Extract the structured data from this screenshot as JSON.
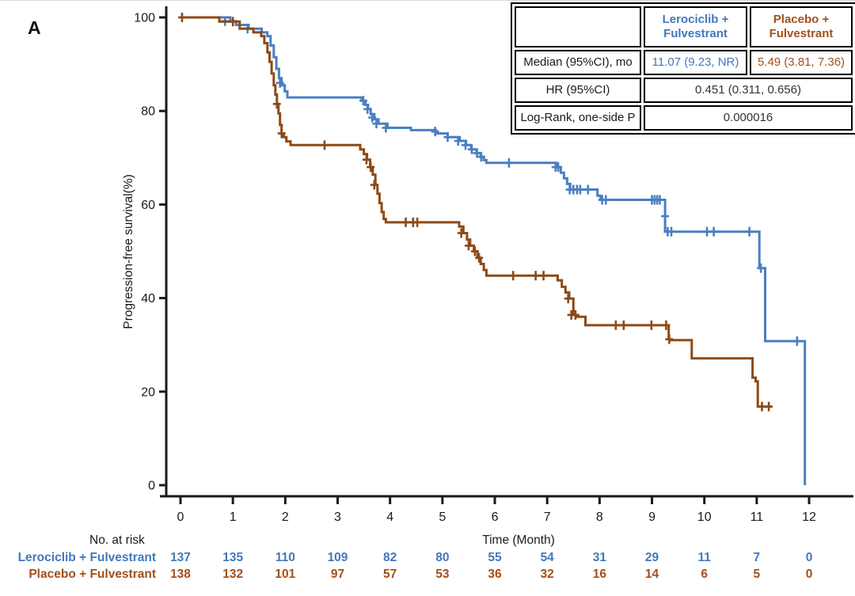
{
  "panel_label": "A",
  "colors": {
    "lerociclib_curve": "#4a7fc1",
    "lerociclib_text": "#4377bd",
    "placebo_curve": "#8d4a16",
    "placebo_text": "#a34f1b",
    "axis": "#1a1a1a",
    "stat_value_text": "#333333"
  },
  "chart_data": {
    "type": "line",
    "subtype": "kaplan-meier-step",
    "title": "",
    "xlabel": "Time (Month)",
    "ylabel": "Progression-free survival(%)",
    "xlim": [
      0,
      12.85
    ],
    "ylim": [
      0,
      100
    ],
    "xticks": [
      0,
      1,
      2,
      3,
      4,
      5,
      6,
      7,
      8,
      9,
      10,
      11,
      12
    ],
    "yticks": [
      0,
      20,
      40,
      60,
      80,
      100
    ],
    "grid": false,
    "legend_position": "none",
    "series": [
      {
        "name": "Lerociclib + Fulvestrant",
        "color": "#4a7fc1",
        "points": [
          [
            0,
            100
          ],
          [
            0.95,
            99.2
          ],
          [
            1.06,
            98.4
          ],
          [
            1.3,
            97.6
          ],
          [
            1.55,
            96.8
          ],
          [
            1.66,
            96
          ],
          [
            1.72,
            94
          ],
          [
            1.78,
            91.5
          ],
          [
            1.83,
            89
          ],
          [
            1.88,
            87
          ],
          [
            1.93,
            85.5
          ],
          [
            1.99,
            84.2
          ],
          [
            2.04,
            82.9
          ],
          [
            3.46,
            82.2
          ],
          [
            3.53,
            81.3
          ],
          [
            3.58,
            80.4
          ],
          [
            3.63,
            79.3
          ],
          [
            3.7,
            78.2
          ],
          [
            3.78,
            77.3
          ],
          [
            3.95,
            76.4
          ],
          [
            4.4,
            75.9
          ],
          [
            4.88,
            75.2
          ],
          [
            5.1,
            74.4
          ],
          [
            5.33,
            73.6
          ],
          [
            5.45,
            72.7
          ],
          [
            5.55,
            71.8
          ],
          [
            5.65,
            71
          ],
          [
            5.73,
            70.2
          ],
          [
            5.79,
            69.5
          ],
          [
            5.84,
            68.9
          ],
          [
            7.18,
            68
          ],
          [
            7.26,
            66.8
          ],
          [
            7.32,
            65.6
          ],
          [
            7.38,
            64.4
          ],
          [
            7.44,
            63.2
          ],
          [
            7.96,
            61.9
          ],
          [
            8.02,
            61
          ],
          [
            9.25,
            54.2
          ],
          [
            11.05,
            46.4
          ],
          [
            11.16,
            30.8
          ],
          [
            11.92,
            0
          ]
        ],
        "censors": [
          [
            0.85,
            99.2
          ],
          [
            1.28,
            97.6
          ],
          [
            1.9,
            86
          ],
          [
            3.49,
            82.2
          ],
          [
            3.57,
            80.4
          ],
          [
            3.66,
            78.6
          ],
          [
            3.74,
            77.3
          ],
          [
            3.92,
            76.4
          ],
          [
            4.86,
            75.6
          ],
          [
            5.1,
            74.4
          ],
          [
            5.3,
            73.6
          ],
          [
            5.44,
            72.7
          ],
          [
            5.56,
            71.8
          ],
          [
            5.66,
            71
          ],
          [
            5.74,
            70.2
          ],
          [
            6.27,
            68.9
          ],
          [
            7.16,
            68
          ],
          [
            7.21,
            68
          ],
          [
            7.43,
            63.2
          ],
          [
            7.5,
            63.2
          ],
          [
            7.57,
            63.2
          ],
          [
            7.63,
            63.2
          ],
          [
            7.78,
            63.2
          ],
          [
            8.05,
            61
          ],
          [
            8.12,
            61
          ],
          [
            9.0,
            61
          ],
          [
            9.05,
            61
          ],
          [
            9.1,
            61
          ],
          [
            9.15,
            61
          ],
          [
            9.25,
            57.5
          ],
          [
            9.3,
            54.2
          ],
          [
            9.37,
            54.2
          ],
          [
            10.05,
            54.2
          ],
          [
            10.18,
            54.2
          ],
          [
            10.86,
            54.2
          ],
          [
            11.08,
            46.4
          ],
          [
            11.77,
            30.8
          ]
        ]
      },
      {
        "name": "Placebo + Fulvestrant",
        "color": "#8d4a16",
        "points": [
          [
            0,
            100
          ],
          [
            0.74,
            99.1
          ],
          [
            1.13,
            97.6
          ],
          [
            1.39,
            96.8
          ],
          [
            1.54,
            96
          ],
          [
            1.6,
            94.5
          ],
          [
            1.66,
            92.5
          ],
          [
            1.7,
            90.5
          ],
          [
            1.74,
            88
          ],
          [
            1.78,
            85.5
          ],
          [
            1.81,
            83.5
          ],
          [
            1.84,
            81.5
          ],
          [
            1.87,
            79.5
          ],
          [
            1.9,
            77
          ],
          [
            1.93,
            75.2
          ],
          [
            1.97,
            74.4
          ],
          [
            2.02,
            73.5
          ],
          [
            2.1,
            72.7
          ],
          [
            3.43,
            71.8
          ],
          [
            3.5,
            70.8
          ],
          [
            3.56,
            69.6
          ],
          [
            3.62,
            68
          ],
          [
            3.67,
            66.4
          ],
          [
            3.72,
            64.2
          ],
          [
            3.76,
            62.3
          ],
          [
            3.8,
            60.3
          ],
          [
            3.84,
            58.4
          ],
          [
            3.88,
            56.9
          ],
          [
            3.92,
            56.2
          ],
          [
            5.32,
            55.3
          ],
          [
            5.4,
            53.9
          ],
          [
            5.47,
            52.5
          ],
          [
            5.53,
            51.2
          ],
          [
            5.6,
            50
          ],
          [
            5.67,
            48.6
          ],
          [
            5.73,
            47.3
          ],
          [
            5.79,
            46
          ],
          [
            5.84,
            44.8
          ],
          [
            7.2,
            43.8
          ],
          [
            7.28,
            42.4
          ],
          [
            7.35,
            41.2
          ],
          [
            7.42,
            39.9
          ],
          [
            7.5,
            36.4
          ],
          [
            7.55,
            36
          ],
          [
            7.73,
            34.2
          ],
          [
            9.32,
            31.2
          ],
          [
            9.35,
            31
          ],
          [
            9.76,
            27.1
          ],
          [
            10.92,
            23
          ],
          [
            10.98,
            22.2
          ],
          [
            11.02,
            16.8
          ],
          [
            11.28,
            16.8
          ]
        ],
        "censors": [
          [
            0.03,
            100
          ],
          [
            1.0,
            99.1
          ],
          [
            1.84,
            81.5
          ],
          [
            1.93,
            75.2
          ],
          [
            2.75,
            72.7
          ],
          [
            3.55,
            69.6
          ],
          [
            3.63,
            68
          ],
          [
            3.7,
            64.2
          ],
          [
            4.3,
            56.2
          ],
          [
            4.44,
            56.2
          ],
          [
            4.52,
            56.2
          ],
          [
            5.36,
            53.9
          ],
          [
            5.5,
            51.2
          ],
          [
            5.62,
            50
          ],
          [
            5.7,
            48.6
          ],
          [
            6.35,
            44.8
          ],
          [
            6.78,
            44.8
          ],
          [
            6.93,
            44.8
          ],
          [
            7.4,
            39.9
          ],
          [
            7.46,
            36.4
          ],
          [
            7.54,
            36.4
          ],
          [
            8.31,
            34.2
          ],
          [
            8.46,
            34.2
          ],
          [
            8.99,
            34.2
          ],
          [
            9.27,
            34.2
          ],
          [
            9.33,
            31.2
          ],
          [
            11.1,
            16.8
          ],
          [
            11.23,
            16.8
          ]
        ]
      }
    ]
  },
  "stats_table": {
    "header": [
      {
        "label": "Lerociclib +\nFulvestrant",
        "color": "#4377bd"
      },
      {
        "label": "Placebo +\nFulvestrant",
        "color": "#a34f1b"
      }
    ],
    "rows": [
      {
        "label": "Median (95%CI), mo",
        "cells": [
          {
            "text": "11.07 (9.23, NR)",
            "color": "#4377bd"
          },
          {
            "text": "5.49 (3.81, 7.36)",
            "color": "#a34f1b"
          }
        ]
      },
      {
        "label": "HR (95%CI)",
        "cells": [
          {
            "text": "0.451 (0.311, 0.656)",
            "color": "#333333",
            "span": 2
          }
        ]
      },
      {
        "label": "Log-Rank, one-side P",
        "cells": [
          {
            "text": "0.000016",
            "color": "#333333",
            "span": 2
          }
        ]
      }
    ]
  },
  "risk_table": {
    "title": "No. at risk",
    "rows": [
      {
        "label": "Lerociclib + Fulvestrant",
        "color": "#4377bd",
        "values": [
          "137",
          "135",
          "110",
          "109",
          "82",
          "80",
          "55",
          "54",
          "31",
          "29",
          "11",
          "7",
          "0"
        ]
      },
      {
        "label": "Placebo + Fulvestrant",
        "color": "#a34f1b",
        "values": [
          "138",
          "132",
          "101",
          "97",
          "57",
          "53",
          "36",
          "32",
          "16",
          "14",
          "6",
          "5",
          "0"
        ]
      }
    ]
  }
}
